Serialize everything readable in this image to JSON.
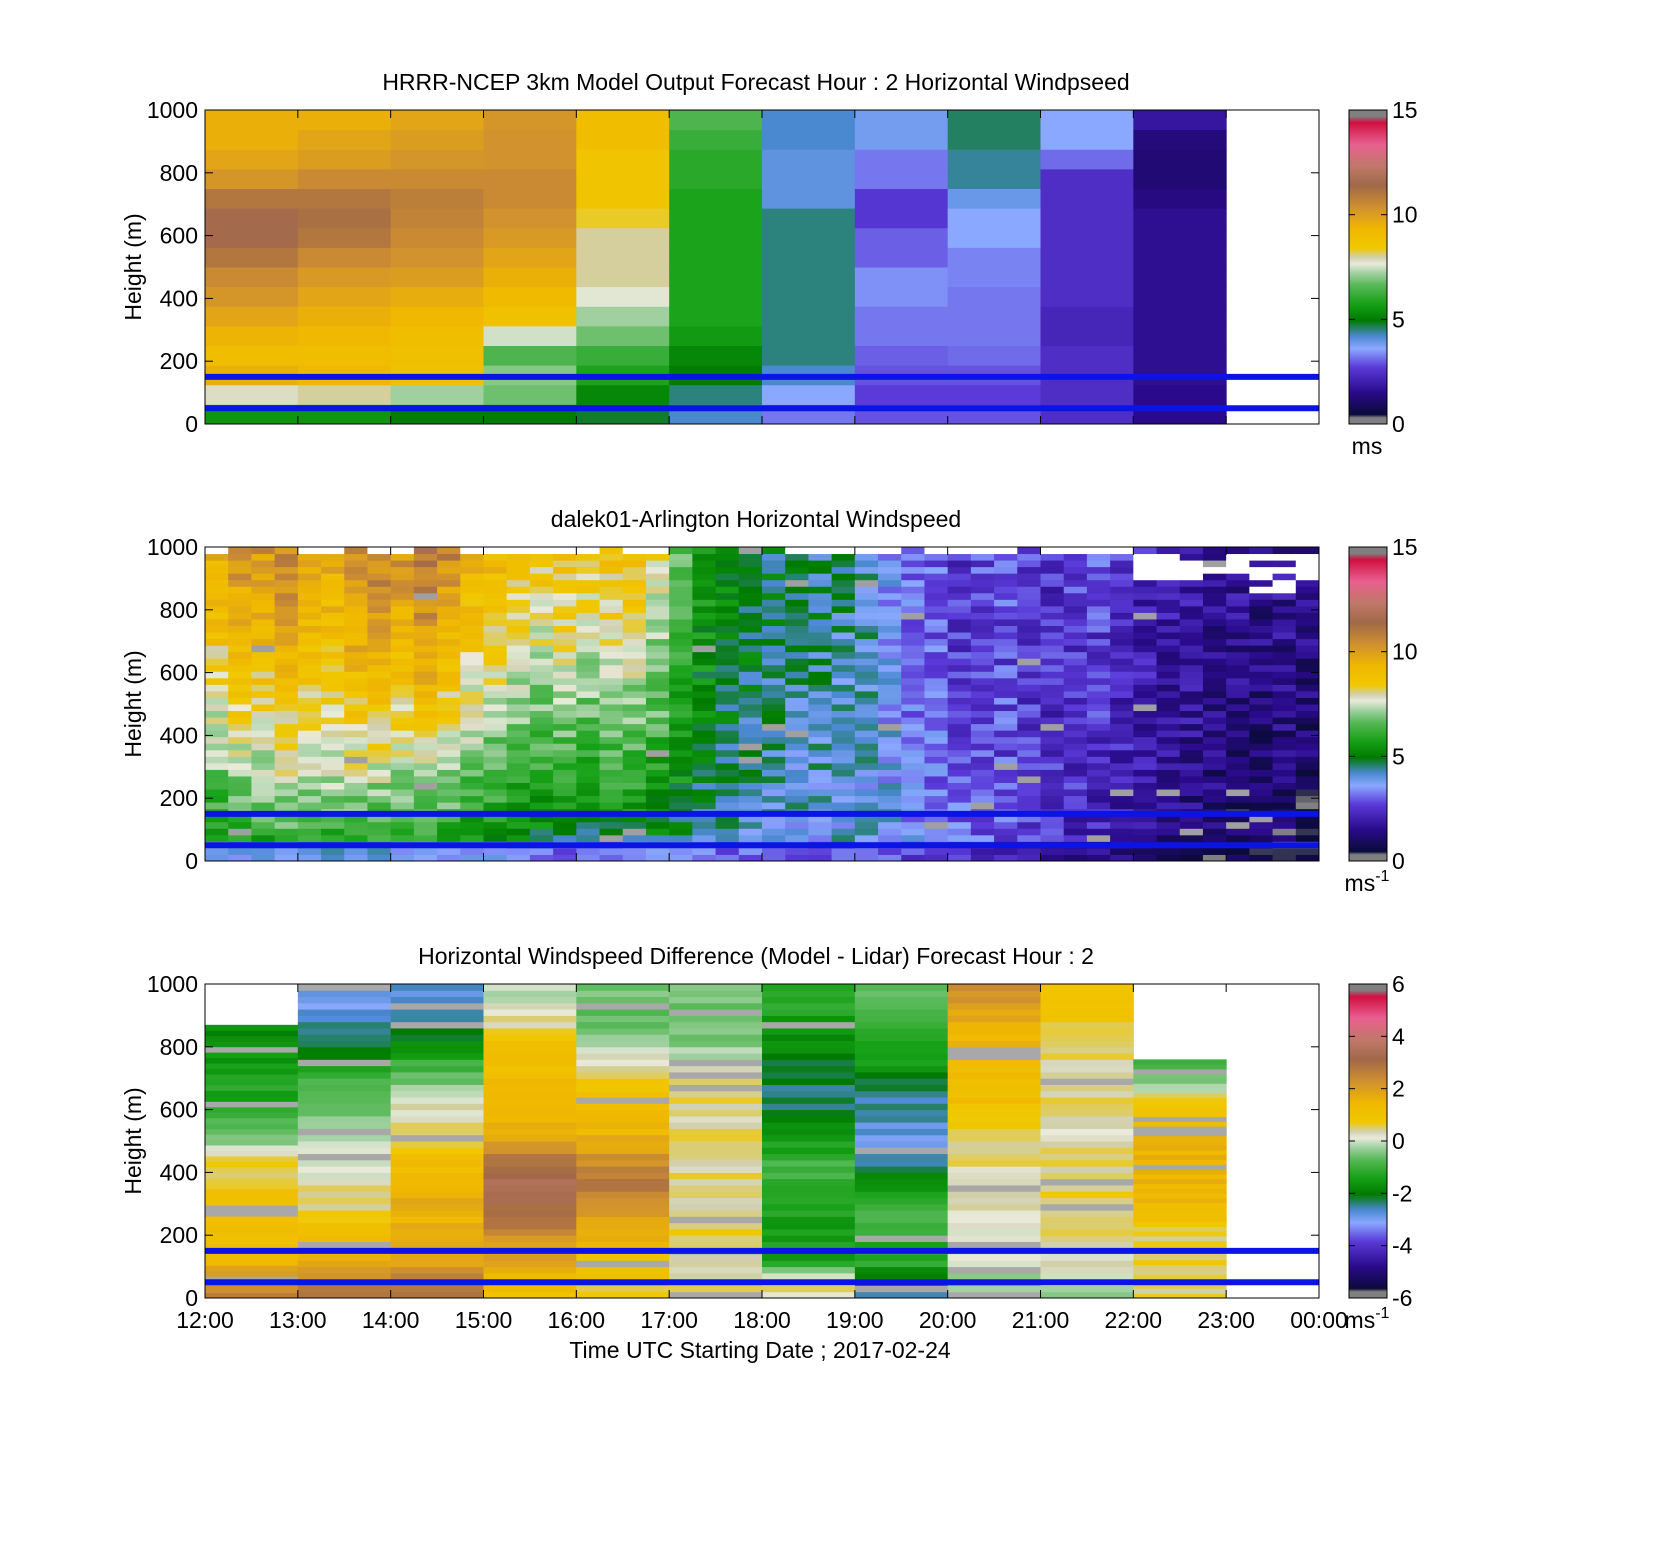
{
  "chart_data": [
    {
      "type": "heatmap",
      "title": "HRRR-NCEP 3km Model Output   Forecast Hour : 2 Horizontal Windpseed",
      "ylabel": "Height (m)",
      "xlabel": "",
      "ylim": [
        0,
        1000
      ],
      "yticks": [
        0,
        200,
        400,
        600,
        800,
        1000
      ],
      "xticks": [
        "12:00",
        "13:00",
        "14:00",
        "15:00",
        "16:00",
        "17:00",
        "18:00",
        "19:00",
        "20:00",
        "21:00",
        "22:00",
        "23:00",
        "00:00"
      ],
      "x_tick_labels_shown": false,
      "colorbar": {
        "min": 0,
        "max": 15,
        "ticks": [
          0,
          5,
          10,
          15
        ],
        "unit": "ms",
        "unit_sup": ""
      },
      "reference_lines_m": [
        50,
        150
      ],
      "reference_line_color": "#0a14e6",
      "columns": [
        {
          "x": "12:00",
          "z": [
            5.5,
            7.8,
            9.5,
            9.0,
            9.4,
            9.8,
            10.2,
            10.5,
            11.0,
            11.5,
            11.5,
            11.0,
            10.2,
            9.8,
            9.5,
            9.5
          ]
        },
        {
          "x": "13:00",
          "z": [
            5.5,
            8.0,
            9.3,
            9.0,
            9.3,
            9.5,
            9.8,
            10.1,
            10.5,
            11.0,
            11.2,
            11.0,
            10.5,
            10.0,
            9.8,
            9.5
          ]
        },
        {
          "x": "14:00",
          "z": [
            5.0,
            7.2,
            8.8,
            8.9,
            9.0,
            9.3,
            9.6,
            10.0,
            10.3,
            10.5,
            10.7,
            10.8,
            10.5,
            10.2,
            10.0,
            9.8
          ]
        },
        {
          "x": "15:00",
          "z": [
            5.0,
            6.8,
            7.0,
            6.5,
            7.5,
            8.8,
            9.2,
            9.5,
            9.8,
            10.1,
            10.3,
            10.5,
            10.5,
            10.3,
            10.3,
            10.2
          ]
        },
        {
          "x": "16:00",
          "z": [
            4.8,
            5.2,
            5.8,
            6.2,
            6.8,
            7.2,
            7.6,
            8.0,
            8.0,
            8.0,
            8.3,
            8.6,
            8.6,
            8.6,
            9.0,
            9.0
          ]
        },
        {
          "x": "17:00",
          "z": [
            4.2,
            4.5,
            5.0,
            5.2,
            5.6,
            5.8,
            5.8,
            5.8,
            5.8,
            5.8,
            5.8,
            5.8,
            6.0,
            6.0,
            6.2,
            6.5
          ]
        },
        {
          "x": "18:00",
          "z": [
            3.2,
            3.6,
            4.2,
            4.5,
            4.5,
            4.5,
            4.5,
            4.5,
            4.5,
            4.5,
            4.5,
            4.0,
            4.0,
            4.0,
            4.2,
            4.2
          ]
        },
        {
          "x": "19:00",
          "z": [
            2.9,
            2.7,
            2.9,
            3.0,
            3.2,
            3.2,
            3.4,
            3.4,
            3.0,
            3.0,
            2.6,
            2.6,
            3.2,
            3.2,
            3.8,
            3.8
          ]
        },
        {
          "x": "20:00",
          "z": [
            2.9,
            2.7,
            2.9,
            3.1,
            3.2,
            3.2,
            3.2,
            3.3,
            3.3,
            3.6,
            3.6,
            3.9,
            4.4,
            4.4,
            4.6,
            4.6
          ]
        },
        {
          "x": "21:00",
          "z": [
            2.4,
            2.4,
            2.4,
            2.4,
            2.2,
            2.2,
            2.4,
            2.4,
            2.4,
            2.4,
            2.4,
            2.4,
            2.4,
            3.1,
            3.6,
            3.6
          ]
        },
        {
          "x": "22:00",
          "z": [
            1.5,
            1.5,
            1.6,
            1.6,
            1.6,
            1.6,
            1.6,
            1.6,
            1.6,
            1.6,
            1.6,
            1.4,
            1.2,
            1.2,
            1.3,
            1.8
          ]
        },
        {
          "x": "23:00",
          "z": []
        }
      ]
    },
    {
      "type": "heatmap",
      "title": "dalek01-Arlington  Horizontal Windspeed",
      "ylabel": "Height (m)",
      "xlabel": "",
      "ylim": [
        0,
        1000
      ],
      "yticks": [
        0,
        200,
        400,
        600,
        800,
        1000
      ],
      "xticks": [
        "12:00",
        "13:00",
        "14:00",
        "15:00",
        "16:00",
        "17:00",
        "18:00",
        "19:00",
        "20:00",
        "21:00",
        "22:00",
        "23:00",
        "00:00"
      ],
      "x_tick_labels_shown": false,
      "colorbar": {
        "min": 0,
        "max": 15,
        "ticks": [
          0,
          5,
          10,
          15
        ],
        "unit": "ms",
        "unit_sup": "-1"
      },
      "reference_lines_m": [
        50,
        150
      ],
      "reference_line_color": "#0a14e6",
      "time_resolution": "15 min columns, 20 m gates",
      "columns": [
        {
          "x": "12:00",
          "z_bottom": 4.8,
          "z_top": 9.8
        },
        {
          "x": "12:15",
          "z_bottom": 5.0,
          "z_top": 10.3
        },
        {
          "x": "12:30",
          "z_bottom": 5.2,
          "z_top": 10.2
        },
        {
          "x": "12:45",
          "z_bottom": 5.4,
          "z_top": 10.6
        },
        {
          "x": "13:00",
          "z_bottom": 5.4,
          "z_top": 10.2
        },
        {
          "x": "13:15",
          "z_bottom": 5.5,
          "z_top": 9.8
        },
        {
          "x": "13:30",
          "z_bottom": 5.4,
          "z_top": 10.6
        },
        {
          "x": "13:45",
          "z_bottom": 5.2,
          "z_top": 10.8
        },
        {
          "x": "14:00",
          "z_bottom": 5.0,
          "z_top": 10.4
        },
        {
          "x": "14:15",
          "z_bottom": 4.8,
          "z_top": 11.3
        },
        {
          "x": "14:30",
          "z_bottom": 4.8,
          "z_top": 10.6
        },
        {
          "x": "14:45",
          "z_bottom": 4.6,
          "z_top": 9.6
        },
        {
          "x": "15:00",
          "z_bottom": 4.6,
          "z_top": 9.2
        },
        {
          "x": "15:15",
          "z_bottom": 4.4,
          "z_top": 8.8
        },
        {
          "x": "15:30",
          "z_bottom": 4.2,
          "z_top": 8.6
        },
        {
          "x": "15:45",
          "z_bottom": 4.2,
          "z_top": 8.8
        },
        {
          "x": "16:00",
          "z_bottom": 4.0,
          "z_top": 8.6
        },
        {
          "x": "16:15",
          "z_bottom": 4.2,
          "z_top": 8.8
        },
        {
          "x": "16:30",
          "z_bottom": 4.2,
          "z_top": 8.8
        },
        {
          "x": "16:45",
          "z_bottom": 4.4,
          "z_top": 8.0
        },
        {
          "x": "17:00",
          "z_bottom": 4.4,
          "z_top": 6.8
        },
        {
          "x": "17:15",
          "z_bottom": 4.2,
          "z_top": 5.8
        },
        {
          "x": "17:30",
          "z_bottom": 4.0,
          "z_top": 5.4
        },
        {
          "x": "17:45",
          "z_bottom": 4.0,
          "z_top": 5.0
        },
        {
          "x": "18:00",
          "z_bottom": 3.8,
          "z_top": 4.8
        },
        {
          "x": "18:15",
          "z_bottom": 3.8,
          "z_top": 4.6
        },
        {
          "x": "18:30",
          "z_bottom": 3.8,
          "z_top": 4.6
        },
        {
          "x": "18:45",
          "z_bottom": 3.8,
          "z_top": 4.5
        },
        {
          "x": "19:00",
          "z_bottom": 3.8,
          "z_top": 4.2
        },
        {
          "x": "19:15",
          "z_bottom": 3.8,
          "z_top": 3.6
        },
        {
          "x": "19:30",
          "z_bottom": 3.6,
          "z_top": 3.2
        },
        {
          "x": "19:45",
          "z_bottom": 3.4,
          "z_top": 3.0
        },
        {
          "x": "20:00",
          "z_bottom": 3.2,
          "z_top": 2.4
        },
        {
          "x": "20:15",
          "z_bottom": 3.0,
          "z_top": 2.8
        },
        {
          "x": "20:30",
          "z_bottom": 2.8,
          "z_top": 2.8
        },
        {
          "x": "20:45",
          "z_bottom": 2.6,
          "z_top": 2.6
        },
        {
          "x": "21:00",
          "z_bottom": 2.4,
          "z_top": 2.4
        },
        {
          "x": "21:15",
          "z_bottom": 2.2,
          "z_top": 2.6
        },
        {
          "x": "21:30",
          "z_bottom": 2.0,
          "z_top": 2.8
        },
        {
          "x": "21:45",
          "z_bottom": 1.8,
          "z_top": 2.6
        },
        {
          "x": "22:00",
          "z_bottom": 1.6,
          "z_top": 2.2
        },
        {
          "x": "22:15",
          "z_bottom": 1.4,
          "z_top": 2.0
        },
        {
          "x": "22:30",
          "z_bottom": 1.2,
          "z_top": 2.0
        },
        {
          "x": "22:45",
          "z_bottom": 1.0,
          "z_top": 1.8
        },
        {
          "x": "23:00",
          "z_bottom": 0.8,
          "z_top": 1.8
        },
        {
          "x": "23:15",
          "z_bottom": 0.8,
          "z_top": 1.6
        },
        {
          "x": "23:30",
          "z_bottom": 0.8,
          "z_top": 1.8
        },
        {
          "x": "23:45",
          "z_bottom": 0.6,
          "z_top": 1.6
        }
      ]
    },
    {
      "type": "heatmap",
      "title": "Horizontal Windspeed Difference (Model - Lidar) Forecast Hour : 2",
      "ylabel": "Height (m)",
      "xlabel": "Time UTC  Starting Date ; 2017-02-24",
      "ylim": [
        0,
        1000
      ],
      "yticks": [
        0,
        200,
        400,
        600,
        800,
        1000
      ],
      "xticks": [
        "12:00",
        "13:00",
        "14:00",
        "15:00",
        "16:00",
        "17:00",
        "18:00",
        "19:00",
        "20:00",
        "21:00",
        "22:00",
        "23:00",
        "00:00"
      ],
      "x_tick_labels_shown": true,
      "colorbar": {
        "min": -6,
        "max": 6,
        "ticks": [
          -6,
          -4,
          -2,
          0,
          2,
          4,
          6
        ],
        "unit": "ms",
        "unit_sup": "-1"
      },
      "reference_lines_m": [
        50,
        150
      ],
      "reference_line_color": "#0a14e6",
      "columns": [
        {
          "x": "12:00",
          "top_m": 870,
          "z": [
            2.5,
            2.2,
            1.5,
            1.2,
            1.2,
            1.0,
            1.0,
            0.6,
            0.8,
            -0.3,
            -0.8,
            -1.2,
            -1.3,
            -1.5,
            -1.5,
            -1.8,
            -1.8
          ]
        },
        {
          "x": "13:00",
          "top_m": 1000,
          "z": [
            2.8,
            2.4,
            1.5,
            1.2,
            1.0,
            0.6,
            0.4,
            0.2,
            0.0,
            -0.1,
            -0.3,
            -0.6,
            -0.8,
            -1.0,
            -1.5,
            -2.0,
            -2.5,
            -2.8,
            -3.0,
            -3.0
          ]
        },
        {
          "x": "14:00",
          "top_m": 1000,
          "z": [
            2.8,
            2.6,
            1.8,
            1.6,
            1.6,
            1.6,
            1.6,
            1.5,
            1.2,
            0.8,
            0.6,
            0.3,
            0.1,
            -0.5,
            -1.0,
            -1.8,
            -2.2,
            -2.6,
            -2.8,
            -2.8
          ]
        },
        {
          "x": "15:00",
          "top_m": 1000,
          "z": [
            1.0,
            1.5,
            1.8,
            2.0,
            2.6,
            3.0,
            3.4,
            3.4,
            3.0,
            2.2,
            1.6,
            1.4,
            1.4,
            1.3,
            1.2,
            1.0,
            0.6,
            0.2,
            0.0,
            0.0
          ]
        },
        {
          "x": "16:00",
          "top_m": 1000,
          "z": [
            0.6,
            0.8,
            1.0,
            1.4,
            1.6,
            2.2,
            2.6,
            2.8,
            2.4,
            1.8,
            1.4,
            1.2,
            1.0,
            0.8,
            0.4,
            0.0,
            -0.5,
            -0.6,
            -0.6,
            -0.6
          ]
        },
        {
          "x": "17:00",
          "top_m": 1000,
          "z": [
            0.3,
            0.4,
            0.4,
            0.5,
            0.5,
            0.6,
            0.5,
            0.5,
            0.4,
            0.4,
            0.4,
            0.4,
            0.4,
            0.3,
            0.2,
            -0.4,
            -0.6,
            -0.6,
            -0.6,
            -0.6
          ]
        },
        {
          "x": "18:00",
          "top_m": 1000,
          "z": [
            0.3,
            0.4,
            -1.4,
            -1.4,
            -1.4,
            -1.4,
            -1.2,
            -1.0,
            -1.0,
            -1.4,
            -1.8,
            -2.2,
            -2.4,
            -2.2,
            -2.0,
            -1.8,
            -1.6,
            -1.4,
            -1.2,
            -1.2
          ]
        },
        {
          "x": "19:00",
          "top_m": 1000,
          "z": [
            -2.4,
            -2.2,
            -1.2,
            -1.2,
            -1.0,
            -1.0,
            -1.2,
            -1.8,
            -2.4,
            -2.8,
            -2.8,
            -2.6,
            -2.4,
            -2.0,
            -1.6,
            -1.4,
            -1.0,
            -0.8,
            -0.6,
            -0.6
          ]
        },
        {
          "x": "20:00",
          "top_m": 1000,
          "z": [
            -0.6,
            -0.2,
            0.0,
            0.1,
            0.2,
            0.2,
            0.2,
            0.3,
            0.4,
            0.6,
            0.8,
            1.0,
            1.2,
            1.2,
            1.4,
            1.4,
            1.6,
            1.8,
            2.2,
            2.6
          ]
        },
        {
          "x": "21:00",
          "top_m": 1000,
          "z": [
            -0.2,
            0.0,
            0.2,
            0.4,
            0.4,
            0.5,
            0.6,
            0.6,
            0.4,
            0.4,
            0.3,
            0.4,
            0.5,
            0.5,
            0.5,
            0.6,
            0.6,
            0.8,
            0.9,
            1.0
          ]
        },
        {
          "x": "22:00",
          "top_m": 760,
          "z": [
            0.4,
            0.4,
            0.5,
            0.6,
            0.6,
            1.2,
            1.4,
            1.5,
            1.5,
            1.5,
            1.4,
            1.2,
            0.8,
            0.0,
            -0.6,
            -1.2
          ]
        },
        {
          "x": "23:00",
          "top_m": 0,
          "z": []
        }
      ]
    }
  ]
}
